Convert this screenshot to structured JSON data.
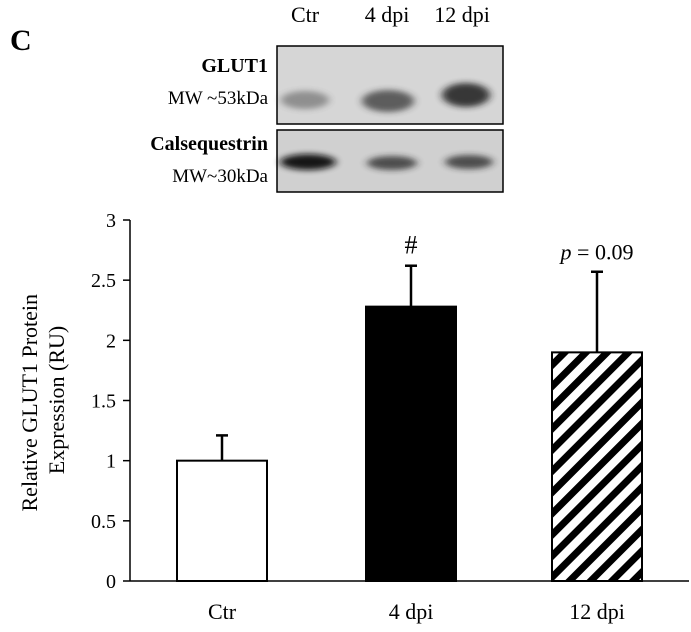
{
  "panel_label": "C",
  "blot": {
    "lanes": [
      "Ctr",
      "4 dpi",
      "12 dpi"
    ],
    "rows": [
      {
        "protein": "GLUT1",
        "mw": "MW ~53kDa",
        "band_intensity": [
          0.45,
          0.7,
          0.85
        ]
      },
      {
        "protein": "Calsequestrin",
        "mw": "MW~30kDa",
        "band_intensity": [
          0.95,
          0.75,
          0.75
        ]
      }
    ]
  },
  "chart_data": {
    "type": "bar",
    "categories": [
      "Ctr",
      "4 dpi",
      "12 dpi"
    ],
    "values": [
      1.0,
      2.28,
      1.9
    ],
    "errors": [
      0.21,
      0.34,
      0.67
    ],
    "fills": [
      "white",
      "black",
      "hatch"
    ],
    "annotations": [
      {
        "category": "4 dpi",
        "text": "#"
      },
      {
        "category": "12 dpi",
        "text_italic": "p",
        "text": " = 0.09"
      }
    ],
    "ylabel_line1": "Relative GLUT1 Protein",
    "ylabel_line2": "Expression (RU)",
    "xlabel": "",
    "ylim": [
      0,
      3
    ],
    "yticks": [
      "0",
      "0.5",
      "1",
      "1.5",
      "2",
      "2.5",
      "3"
    ],
    "grid": false
  }
}
